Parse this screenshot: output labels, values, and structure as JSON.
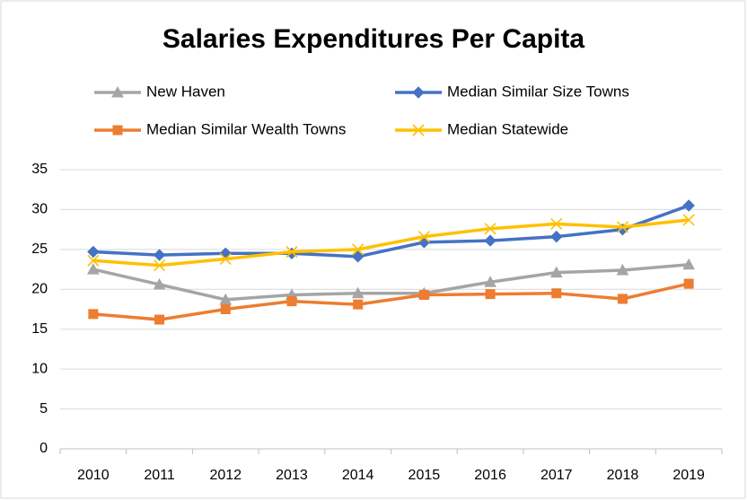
{
  "chart_data": {
    "type": "line",
    "title": "Salaries Expenditures Per Capita",
    "categories": [
      "2010",
      "2011",
      "2012",
      "2013",
      "2014",
      "2015",
      "2016",
      "2017",
      "2018",
      "2019"
    ],
    "series": [
      {
        "name": "New Haven",
        "color": "#a5a5a5",
        "marker": "triangle",
        "values": [
          22.5,
          20.6,
          18.7,
          19.3,
          19.5,
          19.5,
          20.9,
          22.1,
          22.4,
          23.1
        ]
      },
      {
        "name": "Median  Similar Size Towns",
        "color": "#4472c4",
        "marker": "diamond",
        "values": [
          24.7,
          24.3,
          24.5,
          24.5,
          24.1,
          25.9,
          26.1,
          26.6,
          27.5,
          30.5
        ]
      },
      {
        "name": "Median Similar Wealth Towns",
        "color": "#ed7d31",
        "marker": "square",
        "values": [
          16.9,
          16.2,
          17.5,
          18.5,
          18.1,
          19.3,
          19.4,
          19.5,
          18.8,
          20.7
        ]
      },
      {
        "name": "Median Statewide",
        "color": "#ffc000",
        "marker": "x",
        "values": [
          23.6,
          23.0,
          23.8,
          24.7,
          25.0,
          26.6,
          27.6,
          28.2,
          27.8,
          28.7
        ]
      }
    ],
    "ylim": [
      0,
      35
    ],
    "yticks": [
      0,
      5,
      10,
      15,
      20,
      25,
      30,
      35
    ],
    "grid": true
  }
}
